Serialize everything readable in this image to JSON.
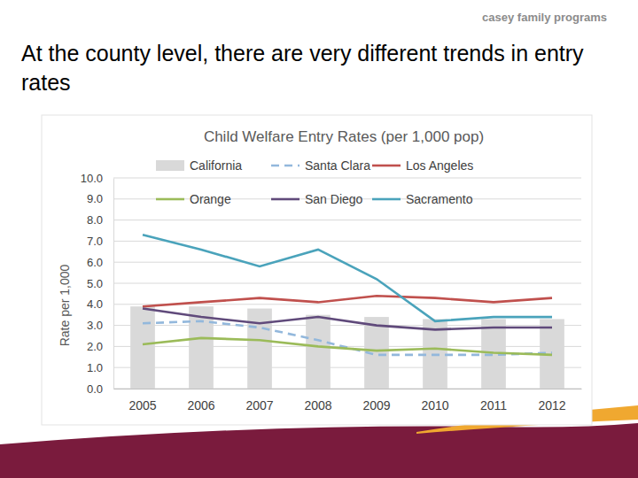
{
  "page": {
    "heading": "At the county level, there are very different trends in entry rates",
    "brand": "casey family programs"
  },
  "chart_data": {
    "type": "bar",
    "title": "Child Welfare Entry Rates (per 1,000 pop)",
    "y_label": "Rate per 1,000",
    "categories": [
      "2005",
      "2006",
      "2007",
      "2008",
      "2009",
      "2010",
      "2011",
      "2012"
    ],
    "series": [
      {
        "name": "California",
        "type": "bar",
        "color": "#d9d9d9",
        "values": [
          3.9,
          3.9,
          3.8,
          3.5,
          3.4,
          3.3,
          3.3,
          3.3
        ]
      },
      {
        "name": "Santa Clara",
        "type": "line",
        "line_style": "dashed",
        "color": "#93b8dc",
        "values": [
          3.1,
          3.2,
          2.9,
          2.3,
          1.6,
          1.6,
          1.6,
          1.7
        ]
      },
      {
        "name": "Los Angeles",
        "type": "line",
        "color": "#c0504d",
        "values": [
          3.9,
          4.1,
          4.3,
          4.1,
          4.4,
          4.3,
          4.1,
          4.3
        ]
      },
      {
        "name": "Orange",
        "type": "line",
        "color": "#9bbb59",
        "values": [
          2.1,
          2.4,
          2.3,
          2.0,
          1.8,
          1.9,
          1.7,
          1.6
        ]
      },
      {
        "name": "San Diego",
        "type": "line",
        "color": "#604a7b",
        "values": [
          3.8,
          3.4,
          3.1,
          3.4,
          3.0,
          2.8,
          2.9,
          2.9
        ]
      },
      {
        "name": "Sacramento",
        "type": "line",
        "color": "#4aa3bb",
        "values": [
          7.3,
          6.6,
          5.8,
          6.6,
          5.2,
          3.2,
          3.4,
          3.4
        ]
      }
    ],
    "ylim": [
      0,
      10
    ],
    "yticks": [
      {
        "value": 0,
        "label": "0.0"
      },
      {
        "value": 1,
        "label": "1.0"
      },
      {
        "value": 2,
        "label": "2.0"
      },
      {
        "value": 3,
        "label": "3.0"
      },
      {
        "value": 4,
        "label": "4.0"
      },
      {
        "value": 5,
        "label": "5.0"
      },
      {
        "value": 6,
        "label": "6.0"
      },
      {
        "value": 7,
        "label": "7.0"
      },
      {
        "value": 8,
        "label": "8.0"
      },
      {
        "value": 9,
        "label": "9.0"
      },
      {
        "value": 10,
        "label": "10.0"
      }
    ],
    "grid": true,
    "legend": "top"
  }
}
